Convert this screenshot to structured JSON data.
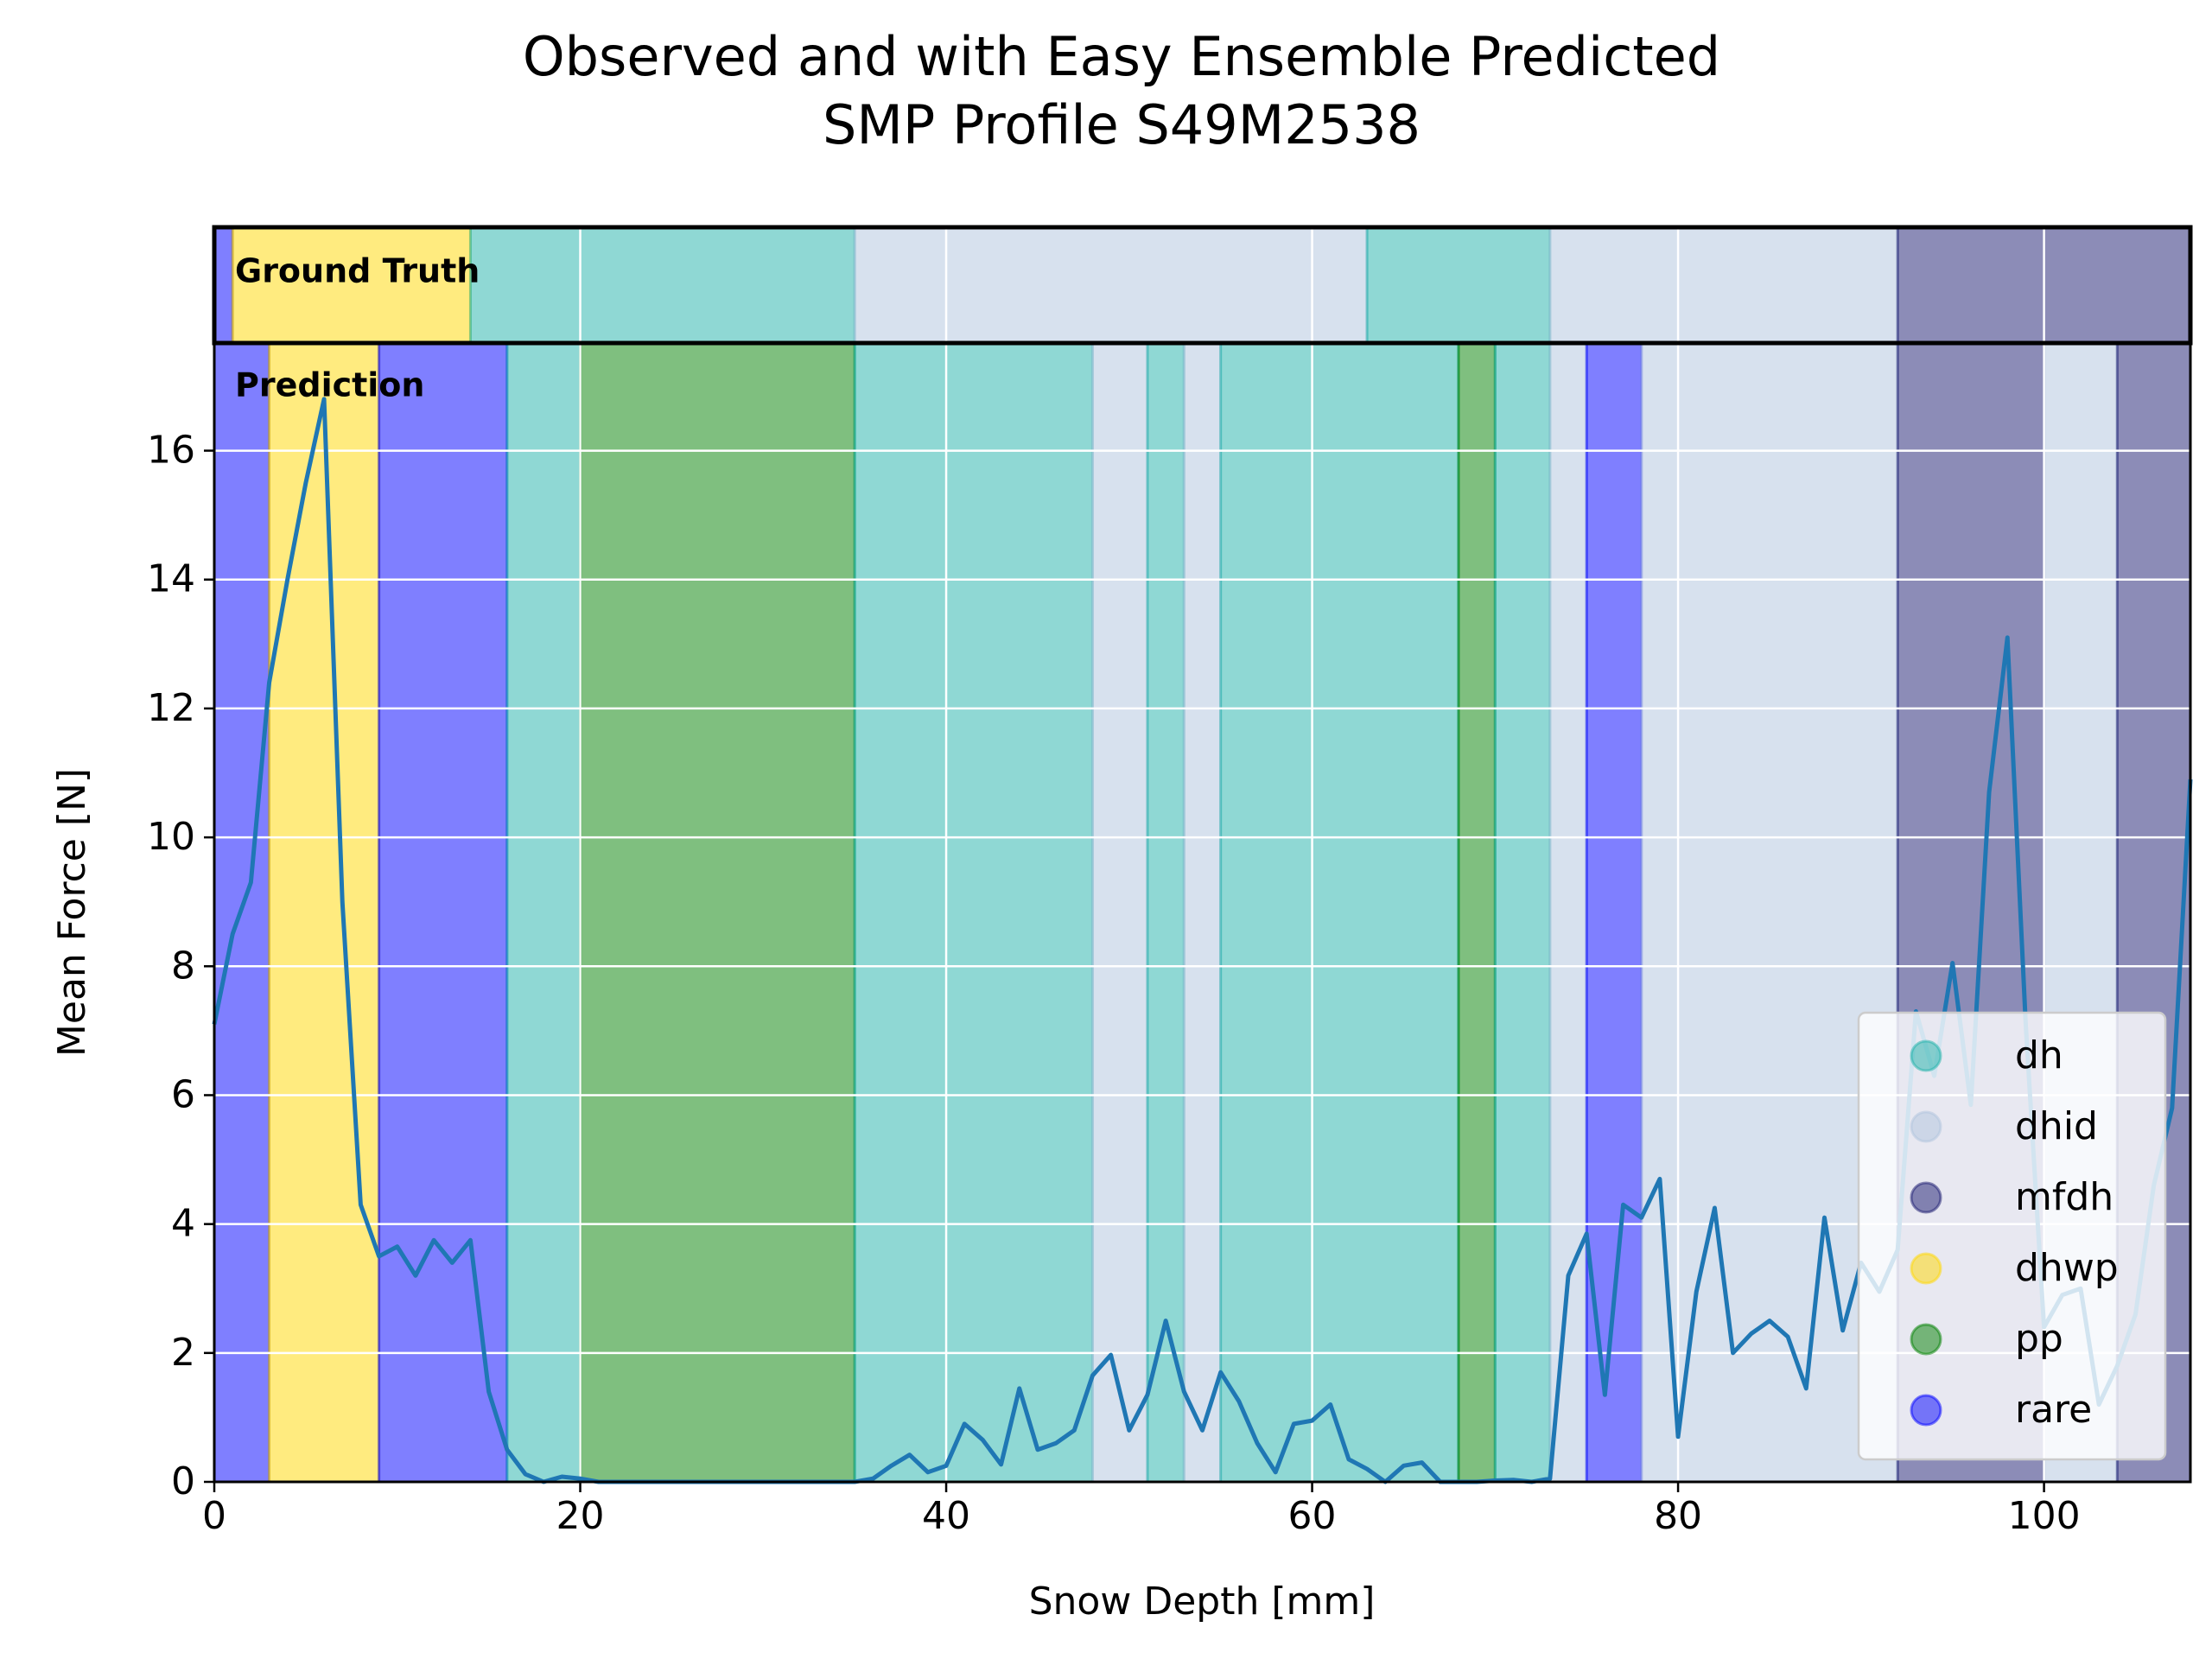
{
  "chart_data": {
    "type": "line",
    "title": "Observed and with Easy Ensemble Predicted",
    "subtitle": "SMP Profile S49M2538",
    "x_label": "Snow Depth [mm]",
    "y_label": "Mean Force [N]",
    "x": [
      0,
      1,
      2,
      3,
      4,
      5,
      6,
      7,
      8,
      9,
      10,
      11,
      12,
      13,
      14,
      15,
      16,
      17,
      18,
      19,
      20,
      21,
      22,
      23,
      24,
      25,
      26,
      27,
      28,
      29,
      30,
      31,
      32,
      33,
      34,
      35,
      36,
      37,
      38,
      39,
      40,
      41,
      42,
      43,
      44,
      45,
      46,
      47,
      48,
      49,
      50,
      51,
      52,
      53,
      54,
      55,
      56,
      57,
      58,
      59,
      60,
      61,
      62,
      63,
      64,
      65,
      66,
      67,
      68,
      69,
      70,
      71,
      72,
      73,
      74,
      75,
      76,
      77,
      78,
      79,
      80,
      81,
      82,
      83,
      84,
      85,
      86,
      87,
      88,
      89,
      90,
      91,
      92,
      93,
      94,
      95,
      96,
      97,
      98,
      99,
      100,
      101,
      102,
      103,
      104,
      105,
      106,
      107,
      108
    ],
    "series": [
      {
        "color": "#1f77b4",
        "values": [
          7.1,
          8.5,
          9.3,
          12.4,
          14.0,
          15.5,
          16.8,
          9.0,
          4.3,
          3.5,
          3.65,
          3.2,
          3.75,
          3.4,
          3.75,
          1.4,
          0.5,
          0.12,
          0.0,
          0.08,
          0.05,
          0.0,
          0.0,
          0.0,
          0.0,
          0.0,
          0.0,
          0.0,
          0.0,
          0.0,
          0.0,
          0.0,
          0.0,
          0.0,
          0.0,
          0.0,
          0.05,
          0.25,
          0.42,
          0.15,
          0.25,
          0.9,
          0.65,
          0.27,
          1.45,
          0.5,
          0.6,
          0.8,
          1.65,
          1.97,
          0.8,
          1.35,
          2.5,
          1.4,
          0.8,
          1.7,
          1.25,
          0.6,
          0.15,
          0.9,
          0.95,
          1.2,
          0.35,
          0.2,
          0.0,
          0.25,
          0.3,
          0.0,
          0.0,
          0.0,
          0.02,
          0.03,
          0.0,
          0.05,
          3.2,
          3.85,
          1.35,
          4.3,
          4.1,
          4.7,
          0.7,
          2.95,
          4.25,
          2.0,
          2.3,
          2.5,
          2.25,
          1.45,
          4.1,
          2.35,
          3.4,
          2.95,
          3.6,
          7.3,
          6.3,
          8.05,
          5.85,
          10.7,
          13.1,
          7.1,
          2.4,
          2.9,
          3.0,
          1.2,
          1.8,
          2.6,
          4.6,
          5.8,
          10.9
        ]
      }
    ],
    "xlim": [
      0,
      108
    ],
    "ylim": [
      0,
      17.67
    ],
    "xticks": [
      0,
      20,
      40,
      60,
      80,
      100
    ],
    "yticks": [
      0,
      2,
      4,
      6,
      8,
      10,
      12,
      14,
      16
    ],
    "grid": true,
    "legend": "lower right",
    "band_alpha": 0.5,
    "classes": [
      {
        "name": "dh",
        "color": "#20b2aa"
      },
      {
        "name": "dhid",
        "color": "#b0c4de"
      },
      {
        "name": "mfdh",
        "color": "#191970"
      },
      {
        "name": "dhwp",
        "color": "#ffd700"
      },
      {
        "name": "pp",
        "color": "#008000"
      },
      {
        "name": "rare",
        "color": "#0000ff"
      }
    ],
    "ground_truth": {
      "label": "Ground Truth",
      "segments": [
        {
          "class": "rare",
          "start": 0,
          "end": 1
        },
        {
          "class": "dhwp",
          "start": 1,
          "end": 14
        },
        {
          "class": "dh",
          "start": 14,
          "end": 35
        },
        {
          "class": "dhid",
          "start": 35,
          "end": 63
        },
        {
          "class": "dh",
          "start": 63,
          "end": 73
        },
        {
          "class": "dhid",
          "start": 73,
          "end": 92
        },
        {
          "class": "mfdh",
          "start": 92,
          "end": 108
        }
      ]
    },
    "prediction": {
      "label": "Prediction",
      "segments": [
        {
          "class": "rare",
          "start": 0,
          "end": 3
        },
        {
          "class": "dhwp",
          "start": 3,
          "end": 9
        },
        {
          "class": "rare",
          "start": 9,
          "end": 16
        },
        {
          "class": "dh",
          "start": 16,
          "end": 20
        },
        {
          "class": "pp",
          "start": 20,
          "end": 35
        },
        {
          "class": "dh",
          "start": 35,
          "end": 48
        },
        {
          "class": "dhid",
          "start": 48,
          "end": 51
        },
        {
          "class": "dh",
          "start": 51,
          "end": 53
        },
        {
          "class": "dhid",
          "start": 53,
          "end": 55
        },
        {
          "class": "dh",
          "start": 55,
          "end": 68
        },
        {
          "class": "pp",
          "start": 68,
          "end": 70
        },
        {
          "class": "dh",
          "start": 70,
          "end": 73
        },
        {
          "class": "dhid",
          "start": 73,
          "end": 75
        },
        {
          "class": "rare",
          "start": 75,
          "end": 78
        },
        {
          "class": "dhid",
          "start": 78,
          "end": 92
        },
        {
          "class": "mfdh",
          "start": 92,
          "end": 100
        },
        {
          "class": "dhid",
          "start": 100,
          "end": 104
        },
        {
          "class": "mfdh",
          "start": 104,
          "end": 108
        }
      ]
    }
  }
}
